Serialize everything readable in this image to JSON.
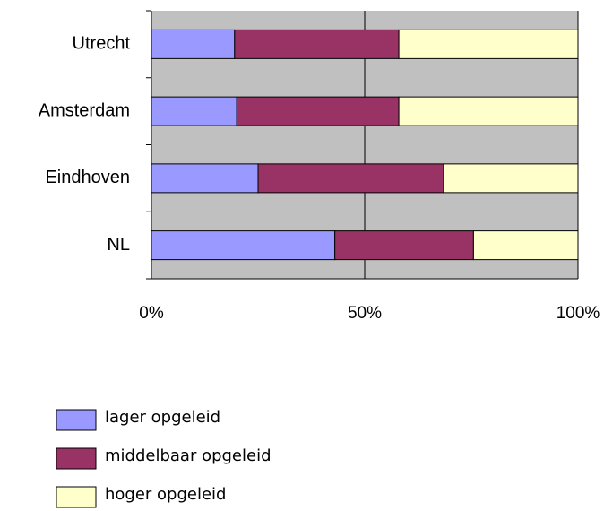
{
  "chart_data": {
    "type": "stacked-bar-horizontal",
    "categories": [
      "Utrecht",
      "Amsterdam",
      "Eindhoven",
      "NL"
    ],
    "series": [
      {
        "name": "lager opgeleid",
        "color": "#9999ff",
        "values": [
          19.5,
          20,
          25,
          43
        ]
      },
      {
        "name": "middelbaar opgeleid",
        "color": "#993366",
        "values": [
          38.5,
          38,
          43.5,
          32.5
        ]
      },
      {
        "name": "hoger opgeleid",
        "color": "#ffffcc",
        "values": [
          42,
          42,
          31.5,
          24.5
        ]
      }
    ],
    "xlim": [
      0,
      100
    ],
    "xticks": [
      {
        "value": 0,
        "label": "0%"
      },
      {
        "value": 50,
        "label": "50%"
      },
      {
        "value": 100,
        "label": "100%"
      }
    ],
    "grid": true,
    "plot_background": "#c0c0c0",
    "legend": "bottom"
  }
}
